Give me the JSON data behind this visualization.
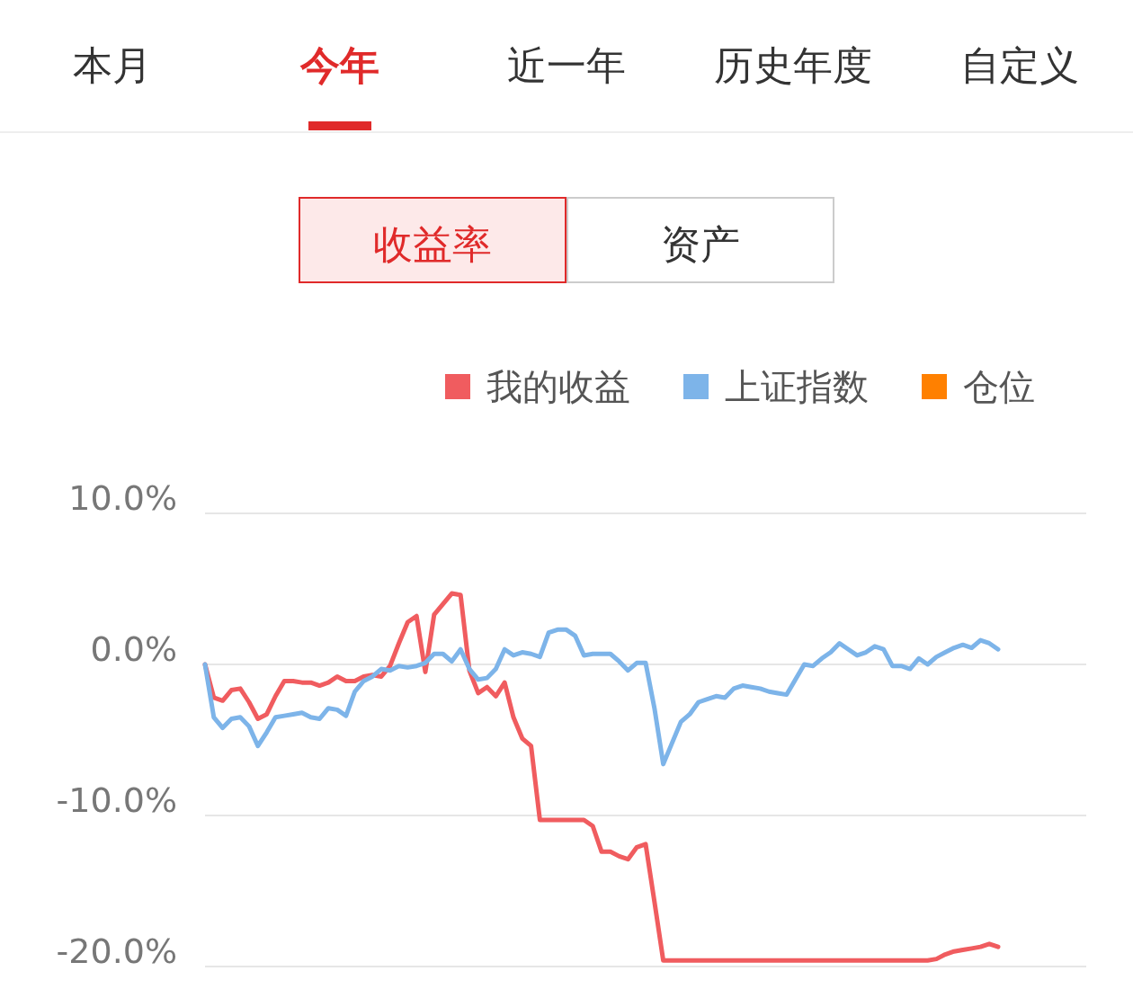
{
  "chart_data": {
    "type": "line",
    "annotations": [
      "本月",
      "今年",
      "近一年",
      "历史年度",
      "自定义",
      "收益率",
      "资产"
    ],
    "categories": [
      null,
      null,
      null,
      null,
      null,
      null,
      null,
      null,
      null,
      null,
      null,
      null,
      null,
      null,
      null,
      null,
      null,
      null,
      null,
      null,
      null,
      null,
      null,
      null,
      null,
      null,
      null,
      null,
      null,
      null,
      null,
      null,
      null,
      null,
      null,
      null,
      null,
      null,
      null,
      null,
      null,
      null,
      null,
      null,
      null,
      null,
      null,
      null,
      null,
      null,
      null,
      null,
      null,
      null,
      null,
      null,
      null,
      null,
      null,
      null,
      null,
      null,
      null,
      null,
      null,
      null,
      null,
      null,
      null,
      null,
      null,
      null,
      null,
      null,
      null,
      null,
      null,
      null,
      null,
      null,
      null,
      null,
      null,
      null,
      null,
      null,
      null,
      null,
      null,
      null,
      null,
      null,
      null,
      null,
      null,
      null,
      null,
      null,
      null,
      null
    ],
    "series": [
      {
        "name": "我的收益",
        "color": "#f05c5f",
        "values": [
          0,
          -2.2,
          -2.4,
          -1.7,
          -1.6,
          -2.5,
          -3.6,
          -3.3,
          -2.1,
          -1.1,
          -1.1,
          -1.2,
          -1.2,
          -1.4,
          -1.2,
          -0.8,
          -1.1,
          -1.1,
          -0.8,
          -0.7,
          -0.8,
          -0.1,
          1.4,
          2.8,
          3.2,
          -0.5,
          3.3,
          4.0,
          4.7,
          4.6,
          -0.4,
          -1.9,
          -1.5,
          -2.1,
          -1.2,
          -3.5,
          -4.9,
          -5.4,
          -10.3,
          -10.3,
          -10.3,
          -10.3,
          -10.3,
          -10.3,
          -10.7,
          -12.4,
          -12.4,
          -12.7,
          -12.9,
          -12.1,
          -11.9,
          -15.7,
          -19.6,
          -19.6,
          -19.6,
          -19.6,
          -19.6,
          -19.6,
          -19.6,
          -19.6,
          -19.6,
          -19.6,
          -19.6,
          -19.6,
          -19.6,
          -19.6,
          -19.6,
          -19.6,
          -19.6,
          -19.6,
          -19.6,
          -19.6,
          -19.6,
          -19.6,
          -19.6,
          -19.6,
          -19.6,
          -19.6,
          -19.6,
          -19.6,
          -19.6,
          -19.6,
          -19.6,
          -19.5,
          -19.2,
          -19.0,
          -18.9,
          -18.8,
          -18.7,
          -18.5,
          -18.7,
          null,
          null,
          null,
          null,
          null,
          null,
          null,
          null,
          null
        ]
      },
      {
        "name": "上证指数",
        "color": "#7db4e9",
        "values": [
          0,
          -3.5,
          -4.2,
          -3.6,
          -3.5,
          -4.1,
          -5.4,
          -4.5,
          -3.5,
          -3.4,
          -3.3,
          -3.2,
          -3.5,
          -3.6,
          -2.9,
          -3.0,
          -3.4,
          -1.8,
          -1.1,
          -0.8,
          -0.3,
          -0.4,
          -0.1,
          -0.2,
          -0.1,
          0.1,
          0.7,
          0.7,
          0.2,
          1.0,
          -0.3,
          -1.0,
          -0.9,
          -0.3,
          1.0,
          0.6,
          0.8,
          0.7,
          0.5,
          2.1,
          2.3,
          2.3,
          1.9,
          0.6,
          0.7,
          0.7,
          0.7,
          0.2,
          -0.4,
          0.1,
          0.1,
          -2.9,
          -6.6,
          -5.2,
          -3.8,
          -3.3,
          -2.5,
          -2.3,
          -2.1,
          -2.2,
          -1.6,
          -1.4,
          -1.5,
          -1.6,
          -1.8,
          -1.9,
          -2.0,
          -1.0,
          0,
          -0.1,
          0.4,
          0.8,
          1.4,
          1.0,
          0.6,
          0.8,
          1.2,
          1.0,
          -0.1,
          -0.1,
          -0.3,
          0.4,
          0,
          0.5,
          0.8,
          1.1,
          1.3,
          1.1,
          1.6,
          1.4,
          1.0,
          null,
          null,
          null,
          null,
          null,
          null,
          null,
          null,
          null
        ]
      },
      {
        "name": "仓位",
        "color": "#ff8000",
        "values": [
          null,
          null,
          null,
          null,
          null,
          null,
          null,
          null,
          null,
          null,
          null,
          null,
          null,
          null,
          null,
          null,
          null,
          null,
          null,
          null,
          null,
          null,
          null,
          null,
          null,
          null,
          null,
          null,
          null,
          null,
          null,
          null,
          null,
          null,
          null,
          null,
          null,
          null,
          null,
          null,
          null,
          null,
          null,
          null,
          null,
          null,
          null,
          null,
          null,
          null,
          null,
          null,
          null,
          null,
          null,
          null,
          null,
          null,
          null,
          null,
          null,
          null,
          null,
          null,
          null,
          null,
          null,
          null,
          null,
          null,
          null,
          null,
          null,
          null,
          null,
          null,
          null,
          null,
          null,
          null,
          null,
          null,
          null,
          null,
          null,
          null,
          null,
          null,
          null,
          null,
          null,
          null,
          null,
          null,
          null,
          null,
          null,
          null,
          null,
          null
        ]
      }
    ],
    "ylim": [
      -20,
      10
    ],
    "yticks": [
      {
        "value": -20,
        "label": "-20.0%"
      },
      {
        "value": -10,
        "label": "-10.0%"
      },
      {
        "value": 0,
        "label": "0.0%"
      },
      {
        "value": 10,
        "label": "10.0%"
      }
    ],
    "grid": "y",
    "legend": "top right",
    "marker": "none",
    "line_style": "solid"
  }
}
